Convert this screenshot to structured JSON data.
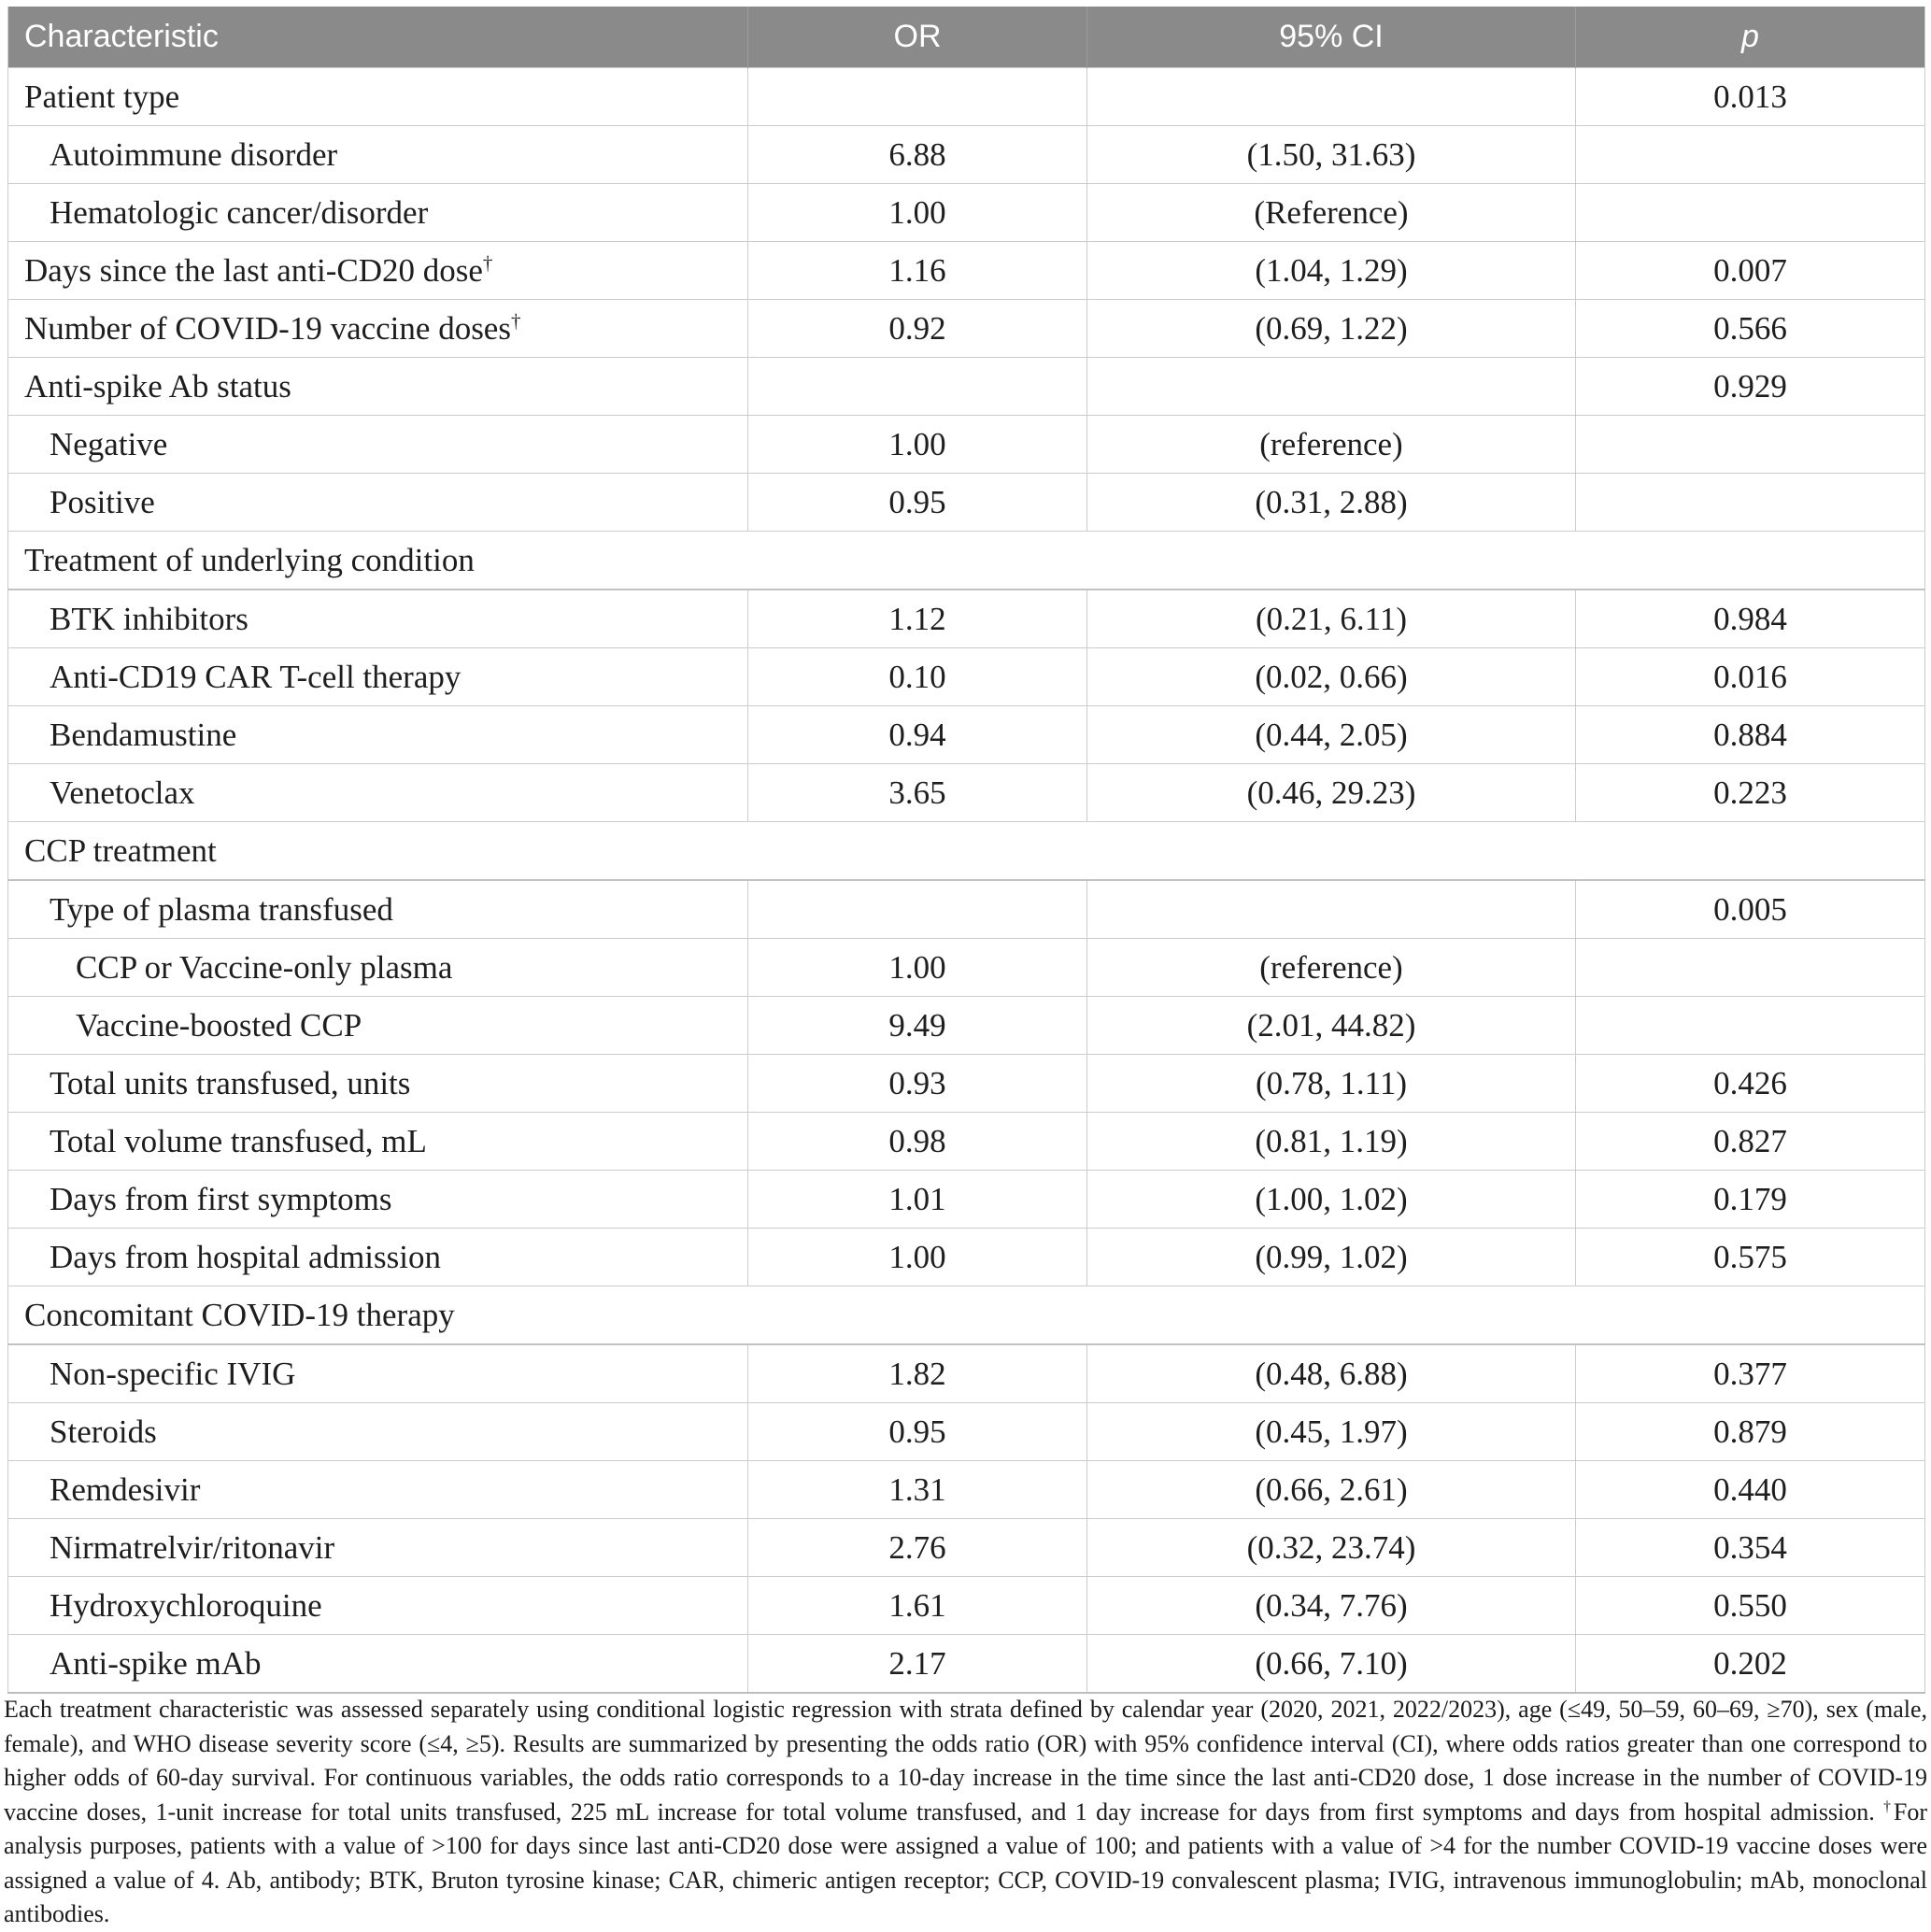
{
  "colors": {
    "header_bg": "#8a8a8a",
    "header_text": "#ffffff",
    "row_border": "#cccccc",
    "section_border": "#c2c2c2",
    "body_text": "#1e1e1e"
  },
  "table": {
    "columns": [
      "Characteristic",
      "OR",
      "95% CI",
      "p"
    ],
    "rows": [
      {
        "label": "Patient type",
        "indent": 0,
        "or": "",
        "ci": "",
        "p": "0.013"
      },
      {
        "label": "Autoimmune disorder",
        "indent": 1,
        "or": "6.88",
        "ci": "(1.50, 31.63)",
        "p": ""
      },
      {
        "label": "Hematologic cancer/disorder",
        "indent": 1,
        "or": "1.00",
        "ci": "(Reference)",
        "p": ""
      },
      {
        "label": "Days since the last anti-CD20 dose",
        "sup": "†",
        "indent": 0,
        "or": "1.16",
        "ci": "(1.04, 1.29)",
        "p": "0.007"
      },
      {
        "label": "Number of COVID-19 vaccine doses",
        "sup": "†",
        "indent": 0,
        "or": "0.92",
        "ci": "(0.69, 1.22)",
        "p": "0.566"
      },
      {
        "label": "Anti-spike Ab status",
        "indent": 0,
        "or": "",
        "ci": "",
        "p": "0.929"
      },
      {
        "label": "Negative",
        "indent": 1,
        "or": "1.00",
        "ci": "(reference)",
        "p": ""
      },
      {
        "label": "Positive",
        "indent": 1,
        "or": "0.95",
        "ci": "(0.31, 2.88)",
        "p": ""
      },
      {
        "label": "Treatment of underlying condition",
        "indent": 0,
        "section": true
      },
      {
        "label": "BTK inhibitors",
        "indent": 1,
        "or": "1.12",
        "ci": "(0.21, 6.11)",
        "p": "0.984"
      },
      {
        "label": "Anti-CD19 CAR T-cell therapy",
        "indent": 1,
        "or": "0.10",
        "ci": "(0.02, 0.66)",
        "p": "0.016"
      },
      {
        "label": "Bendamustine",
        "indent": 1,
        "or": "0.94",
        "ci": "(0.44, 2.05)",
        "p": "0.884"
      },
      {
        "label": "Venetoclax",
        "indent": 1,
        "or": "3.65",
        "ci": "(0.46, 29.23)",
        "p": "0.223"
      },
      {
        "label": "CCP treatment",
        "indent": 0,
        "section": true
      },
      {
        "label": "Type of plasma transfused",
        "indent": 1,
        "or": "",
        "ci": "",
        "p": "0.005"
      },
      {
        "label": "CCP or Vaccine-only plasma",
        "indent": 2,
        "or": "1.00",
        "ci": "(reference)",
        "p": ""
      },
      {
        "label": "Vaccine-boosted CCP",
        "indent": 2,
        "or": "9.49",
        "ci": "(2.01, 44.82)",
        "p": ""
      },
      {
        "label": "Total units transfused, units",
        "indent": 1,
        "or": "0.93",
        "ci": "(0.78, 1.11)",
        "p": "0.426"
      },
      {
        "label": "Total volume transfused, mL",
        "indent": 1,
        "or": "0.98",
        "ci": "(0.81, 1.19)",
        "p": "0.827"
      },
      {
        "label": "Days from first symptoms",
        "indent": 1,
        "or": "1.01",
        "ci": "(1.00, 1.02)",
        "p": "0.179"
      },
      {
        "label": "Days from hospital admission",
        "indent": 1,
        "or": "1.00",
        "ci": "(0.99, 1.02)",
        "p": "0.575"
      },
      {
        "label": "Concomitant COVID-19 therapy",
        "indent": 0,
        "section": true
      },
      {
        "label": "Non-specific IVIG",
        "indent": 1,
        "or": "1.82",
        "ci": "(0.48, 6.88)",
        "p": "0.377"
      },
      {
        "label": "Steroids",
        "indent": 1,
        "or": "0.95",
        "ci": "(0.45, 1.97)",
        "p": "0.879"
      },
      {
        "label": "Remdesivir",
        "indent": 1,
        "or": "1.31",
        "ci": "(0.66, 2.61)",
        "p": "0.440"
      },
      {
        "label": "Nirmatrelvir/ritonavir",
        "indent": 1,
        "or": "2.76",
        "ci": "(0.32, 23.74)",
        "p": "0.354"
      },
      {
        "label": "Hydroxychloroquine",
        "indent": 1,
        "or": "1.61",
        "ci": "(0.34, 7.76)",
        "p": "0.550"
      },
      {
        "label": "Anti-spike mAb",
        "indent": 1,
        "or": "2.17",
        "ci": "(0.66, 7.10)",
        "p": "0.202"
      }
    ]
  },
  "footnote_parts": [
    {
      "t": "Each treatment characteristic was assessed separately using conditional logistic regression with strata defined by calendar year (2020, 2021, 2022/2023), age (≤49, 50–59, 60–69, ≥70), sex (male, female), and WHO disease severity score (≤4, ≥5). Results are summarized by presenting the odds ratio (OR) with 95% confidence interval (CI), where odds ratios greater than one correspond to higher odds of 60-day survival. For continuous variables, the odds ratio corresponds to a 10-day increase in the time since the last anti-CD20 dose, 1 dose increase in the number of COVID-19 vaccine doses, 1-unit increase for total units transfused, 225 mL increase for total volume transfused, and 1 day increase for days from first symptoms and days from hospital admission. "
    },
    {
      "sup": "†"
    },
    {
      "t": "For analysis purposes, patients with a value of >100 for days since last anti-CD20 dose were assigned a value of 100; and patients with a value of >4 for the number COVID-19 vaccine doses were assigned a value of 4. Ab, antibody; BTK, Bruton tyrosine kinase; CAR, chimeric antigen receptor; CCP, COVID-19 convalescent plasma; IVIG, intravenous immunoglobulin; mAb, monoclonal antibodies."
    }
  ]
}
